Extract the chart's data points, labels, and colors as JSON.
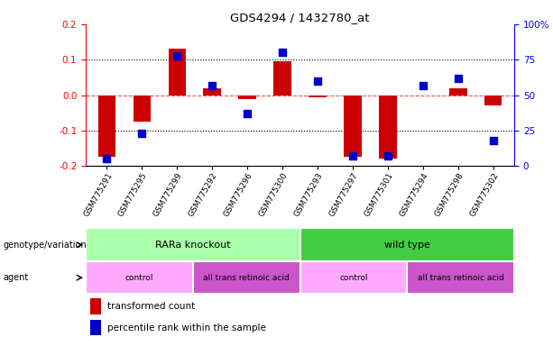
{
  "title": "GDS4294 / 1432780_at",
  "samples": [
    "GSM775291",
    "GSM775295",
    "GSM775299",
    "GSM775292",
    "GSM775296",
    "GSM775300",
    "GSM775293",
    "GSM775297",
    "GSM775301",
    "GSM775294",
    "GSM775298",
    "GSM775302"
  ],
  "red_values": [
    -0.175,
    -0.075,
    0.13,
    0.02,
    -0.01,
    0.095,
    -0.005,
    -0.175,
    -0.18,
    0.0,
    0.02,
    -0.03
  ],
  "blue_values_pct": [
    5,
    23,
    78,
    57,
    37,
    80,
    60,
    7,
    7,
    57,
    62,
    18
  ],
  "ylim_left": [
    -0.2,
    0.2
  ],
  "ylim_right": [
    0,
    100
  ],
  "yticks_left": [
    -0.2,
    -0.1,
    0.0,
    0.1,
    0.2
  ],
  "yticks_right": [
    0,
    25,
    50,
    75,
    100
  ],
  "ytick_labels_right": [
    "0",
    "25",
    "50",
    "75",
    "100%"
  ],
  "bar_color": "#cc0000",
  "dot_color": "#0000cc",
  "bar_width": 0.5,
  "dot_size": 30,
  "group1_label": "RARa knockout",
  "group2_label": "wild type",
  "group1_color": "#aaffaa",
  "group2_color": "#44cc44",
  "agent_color_light": "#ffaaff",
  "agent_color_dark": "#cc55cc",
  "agent1a_label": "control",
  "agent1b_label": "all trans retinoic acid",
  "agent2a_label": "control",
  "agent2b_label": "all trans retinoic acid",
  "legend1": "transformed count",
  "legend2": "percentile rank within the sample",
  "background_color": "#ffffff"
}
